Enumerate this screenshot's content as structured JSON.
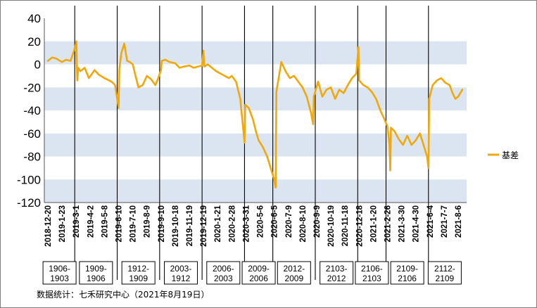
{
  "chart_data": {
    "type": "line",
    "title": "",
    "xlabel": "",
    "ylabel": "",
    "ylim": [
      -120,
      40
    ],
    "y_ticks": [
      40,
      20,
      0,
      -20,
      -40,
      -60,
      -80,
      -100,
      -120
    ],
    "bands": [
      [
        0,
        20
      ],
      [
        -40,
        -20
      ],
      [
        -80,
        -60
      ],
      [
        -120,
        -100
      ]
    ],
    "band_color": "#dbe5f1",
    "grid": false,
    "legend_position": "right",
    "x_tick_labels": [
      "2018-12-20",
      "2019-1-23",
      "2019-3-1",
      "2019-4-2",
      "2019-5-8",
      "2019-6-10",
      "2019-7-10",
      "2019-8-9",
      "2019-9-10",
      "2019-10-18",
      "2019-11-19",
      "2019-12-19",
      "2020-1-21",
      "2020-2-28",
      "2020-3-31",
      "2020-5-6",
      "2020-6-5",
      "2020-7-9",
      "2020-8-10",
      "2020-9-9",
      "2020-10-19",
      "2020-11-18",
      "2020-12-18",
      "2021-1-20",
      "2021-2-26",
      "2021-3-30",
      "2021-4-30",
      "2021-6-4",
      "2021-7-7",
      "2021-8-6"
    ],
    "contract_switch_ticks": [
      2,
      5,
      8,
      11,
      14,
      16,
      19,
      22,
      24,
      27
    ],
    "contract_periods": [
      "1906-1903",
      "1909-1906",
      "1912-1909",
      "2003-1912",
      "2006-2003",
      "2009-2006",
      "2012-2009",
      "2103-2012",
      "2106-2103",
      "2109-2106",
      "2112-2109"
    ],
    "series": [
      {
        "name": "基差",
        "color": "#f0a80a",
        "points": [
          [
            0,
            3
          ],
          [
            0.3,
            6
          ],
          [
            0.6,
            5
          ],
          [
            1,
            2
          ],
          [
            1.3,
            4
          ],
          [
            1.6,
            3
          ],
          [
            1.8,
            10
          ],
          [
            1.95,
            16
          ],
          [
            2.02,
            20
          ],
          [
            2.05,
            0
          ],
          [
            2.08,
            -14
          ],
          [
            2.15,
            -3
          ],
          [
            2.3,
            -6
          ],
          [
            2.6,
            -3
          ],
          [
            2.9,
            -12
          ],
          [
            3.3,
            -5
          ],
          [
            3.6,
            -9
          ],
          [
            4,
            -12
          ],
          [
            4.5,
            -15
          ],
          [
            4.75,
            -18
          ],
          [
            4.9,
            -30
          ],
          [
            5,
            -38
          ],
          [
            5.05,
            -4
          ],
          [
            5.2,
            10
          ],
          [
            5.4,
            18
          ],
          [
            5.6,
            3
          ],
          [
            5.8,
            2
          ],
          [
            6,
            0
          ],
          [
            6.2,
            -10
          ],
          [
            6.4,
            -20
          ],
          [
            6.7,
            -18
          ],
          [
            7,
            -10
          ],
          [
            7.3,
            -13
          ],
          [
            7.6,
            -18
          ],
          [
            7.8,
            -12
          ],
          [
            8,
            -5
          ],
          [
            8.05,
            3
          ],
          [
            8.3,
            4
          ],
          [
            8.6,
            2
          ],
          [
            9,
            1
          ],
          [
            9.3,
            -3
          ],
          [
            9.6,
            -2
          ],
          [
            10,
            -1
          ],
          [
            10.3,
            -3
          ],
          [
            10.6,
            -2
          ],
          [
            10.9,
            -1
          ],
          [
            11,
            12
          ],
          [
            11.05,
            -2
          ],
          [
            11.3,
            0
          ],
          [
            11.6,
            -3
          ],
          [
            11.9,
            -6
          ],
          [
            12.2,
            -8
          ],
          [
            12.5,
            -10
          ],
          [
            12.8,
            -12
          ],
          [
            13,
            -10
          ],
          [
            13.3,
            -15
          ],
          [
            13.6,
            -30
          ],
          [
            13.8,
            -55
          ],
          [
            13.9,
            -68
          ],
          [
            13.95,
            -35
          ],
          [
            14.2,
            -38
          ],
          [
            14.5,
            -48
          ],
          [
            14.7,
            -58
          ],
          [
            14.9,
            -66
          ],
          [
            15.2,
            -72
          ],
          [
            15.5,
            -80
          ],
          [
            15.8,
            -92
          ],
          [
            16,
            -100
          ],
          [
            16.1,
            -107
          ],
          [
            16.15,
            -24
          ],
          [
            16.2,
            -20
          ],
          [
            16.5,
            2
          ],
          [
            16.8,
            -6
          ],
          [
            17.1,
            -12
          ],
          [
            17.4,
            -10
          ],
          [
            17.7,
            -15
          ],
          [
            18,
            -20
          ],
          [
            18.3,
            -28
          ],
          [
            18.6,
            -42
          ],
          [
            18.75,
            -52
          ],
          [
            18.8,
            -28
          ],
          [
            19.1,
            -15
          ],
          [
            19.4,
            -28
          ],
          [
            19.7,
            -22
          ],
          [
            20,
            -20
          ],
          [
            20.3,
            -30
          ],
          [
            20.6,
            -22
          ],
          [
            20.9,
            -25
          ],
          [
            21.2,
            -18
          ],
          [
            21.5,
            -12
          ],
          [
            21.8,
            -8
          ],
          [
            21.95,
            15
          ],
          [
            22,
            -14
          ],
          [
            22.3,
            -18
          ],
          [
            22.6,
            -20
          ],
          [
            22.9,
            -24
          ],
          [
            23.2,
            -30
          ],
          [
            23.5,
            -40
          ],
          [
            23.8,
            -48
          ],
          [
            24,
            -54
          ],
          [
            24.15,
            -70
          ],
          [
            24.2,
            -92
          ],
          [
            24.25,
            -55
          ],
          [
            24.5,
            -58
          ],
          [
            24.8,
            -65
          ],
          [
            25.1,
            -70
          ],
          [
            25.4,
            -62
          ],
          [
            25.7,
            -70
          ],
          [
            26,
            -66
          ],
          [
            26.3,
            -60
          ],
          [
            26.6,
            -72
          ],
          [
            26.8,
            -80
          ],
          [
            26.9,
            -90
          ],
          [
            26.95,
            -30
          ],
          [
            27.2,
            -18
          ],
          [
            27.5,
            -14
          ],
          [
            27.8,
            -12
          ],
          [
            28.1,
            -16
          ],
          [
            28.4,
            -18
          ],
          [
            28.6,
            -25
          ],
          [
            28.8,
            -30
          ],
          [
            29,
            -28
          ],
          [
            29.3,
            -22
          ]
        ]
      }
    ],
    "source_note": "数据统计：七禾研究中心（2021年8月19日）"
  }
}
